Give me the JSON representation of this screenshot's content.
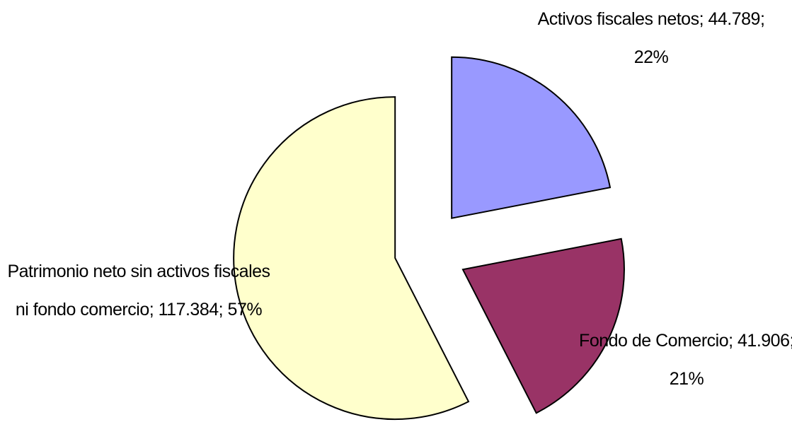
{
  "chart_data": {
    "type": "pie",
    "categories": [
      "Activos fiscales netos;",
      "Fondo de Comercio;",
      "Patrimonio neto sin activos fiscales ni fondo comercio;"
    ],
    "values": [
      44789,
      41906,
      117384
    ],
    "value_labels": [
      "44.789;",
      "41.906;",
      "117.384;"
    ],
    "percents": [
      22,
      21,
      57
    ],
    "percent_labels": [
      "22%",
      "21%",
      "57%"
    ],
    "colors": [
      "#9999ff",
      "#993366",
      "#ffffcc"
    ]
  }
}
